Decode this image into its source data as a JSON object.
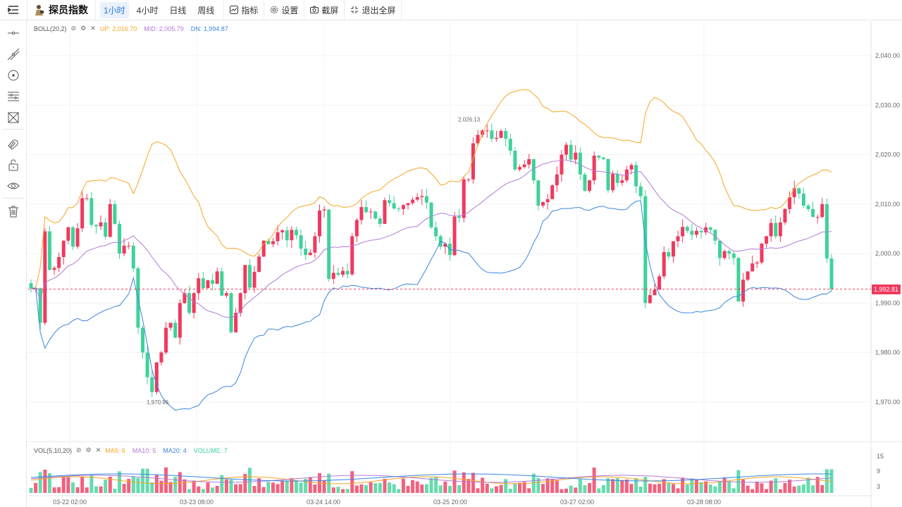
{
  "header": {
    "title": "探员指数",
    "timeframes": [
      "1小时",
      "4小时",
      "日线",
      "周线"
    ],
    "active_timeframe": "1小时",
    "tools": [
      {
        "label": "指标",
        "icon": "indicator-icon"
      },
      {
        "label": "设置",
        "icon": "gear-icon"
      },
      {
        "label": "截屏",
        "icon": "camera-icon"
      },
      {
        "label": "退出全屏",
        "icon": "exit-fullscreen-icon"
      }
    ]
  },
  "left_toolbar": [
    "horizontal-line-icon",
    "trend-line-icon",
    "circle-target-icon",
    "fib-lines-icon",
    "pattern-icon",
    "magnet-icon",
    "unlock-icon",
    "eye-icon",
    "trash-icon"
  ],
  "boll_legend": {
    "name": "BOLL(20,2)",
    "up": "UP: 2,016.70",
    "mid": "MID: 2,005.79",
    "dn": "DN: 1,994.87",
    "up_color": "#f5a623",
    "mid_color": "#b27ad6",
    "dn_color": "#3a86e0"
  },
  "vol_legend": {
    "name": "VOL(5,10,20)",
    "ma5": "MA5: 6",
    "ma10": "MA10: 5",
    "ma20": "MA20: 4",
    "volume": "VOLUME: 7"
  },
  "price_axis": [
    "2,040.00",
    "2,030.00",
    "2,020.00",
    "2,010.00",
    "2,000.00",
    "1,990.00",
    "1,980.00",
    "1,970.00"
  ],
  "vol_axis": [
    "15",
    "9",
    "3"
  ],
  "time_axis": [
    "03-22 02:00",
    "03-23 08:00",
    "03-24 14:00",
    "03-25 20:00",
    "03-27 02:00",
    "03-28 08:00"
  ],
  "current_price": "1,992.81",
  "high_label": "2,026.13",
  "low_label": "1,970.96",
  "colors": {
    "up": "#f0395e",
    "down": "#3fd29a",
    "grid": "#f3f3f3"
  },
  "chart_data": {
    "type": "candlestick",
    "ylim": [
      1962,
      2047
    ],
    "candles_close": [
      1993.0,
      1993.0,
      1986.0,
      2004.5,
      1996.7,
      1997.1,
      1999.3,
      2002.6,
      2005.3,
      2001.4,
      2005.1,
      2011.2,
      2011.2,
      2005.8,
      2005.5,
      2006.3,
      2003.4,
      2010.0,
      2006.0,
      2000.0,
      2001.6,
      2001.6,
      1997.0,
      1985.0,
      1980.0,
      1975.0,
      1972.0,
      1978.0,
      1980.0,
      1985.0,
      1986.0,
      1983.0,
      1990.0,
      1992.0,
      1988.0,
      1992.0,
      1995.0,
      1993.0,
      1994.6,
      1993.9,
      1996.4,
      1991.5,
      1992.0,
      1984.1,
      1988.0,
      1992.0,
      1997.7,
      1993.1,
      1996.3,
      1999.4,
      2002.6,
      2001.9,
      2002.5,
      2004.3,
      2004.7,
      2002.7,
      2004.8,
      2003.7,
      2001.0,
      1999.7,
      2000.2,
      2003.5,
      2008.7,
      2008.9,
      1994.9,
      1996.1,
      1995.7,
      1996.5,
      1995.8,
      2003.5,
      2006.8,
      2009.4,
      2008.4,
      2008.5,
      2007.1,
      2006.0,
      2010.8,
      2010.2,
      2009.1,
      2009.0,
      2009.8,
      2010.2,
      2010.9,
      2011.4,
      2011.6,
      2010.3,
      2005.3,
      2003.5,
      2001.4,
      2002.0,
      1999.7,
      2007.5,
      2007.2,
      2015.0,
      2015.0,
      2022.3,
      2024.0,
      2024.9,
      2024.9,
      2023.2,
      2023.4,
      2024.8,
      2023.2,
      2020.8,
      2017.0,
      2017.5,
      2018.0,
      2019.1,
      2014.8,
      2009.7,
      2010.4,
      2011.0,
      2013.8,
      2016.0,
      2020.0,
      2022.0,
      2019.0,
      2020.4,
      2016.0,
      2012.7,
      2014.8,
      2019.8,
      2019.4,
      2019.1,
      2012.8,
      2016.1,
      2014.3,
      2014.8,
      2017.0,
      2017.9,
      2013.6,
      2011.6,
      1990.0,
      1991.6,
      1992.7,
      1995.4,
      2000.3,
      1999.4,
      2002.5,
      2003.5,
      2005.4,
      2004.6,
      2003.8,
      2004.6,
      2004.3,
      2005.3,
      2004.8,
      2002.6,
      1999.1,
      2000.5,
      2000.0,
      1999.1,
      1990.3,
      1994.7,
      1996.4,
      1998.0,
      1998.2,
      2002.0,
      2003.5,
      2006.2,
      2003.5,
      2006.3,
      2009.0,
      2011.4,
      2013.2,
      2012.1,
      2009.7,
      2009.0,
      2007.4,
      2007.4,
      2010.0,
      1999.0,
      1992.8
    ]
  }
}
